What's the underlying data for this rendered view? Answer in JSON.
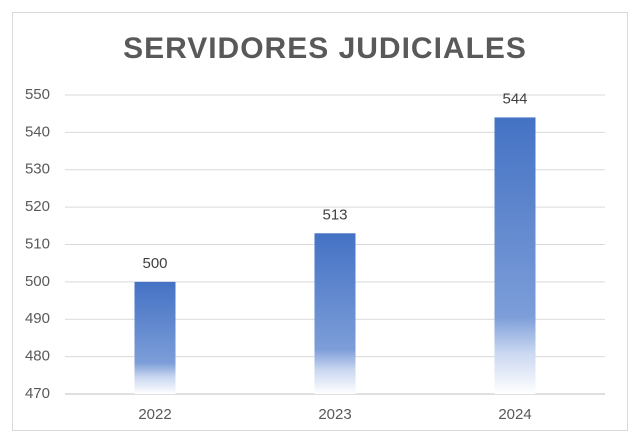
{
  "chart_data": {
    "type": "bar",
    "title": "SERVIDORES JUDICIALES",
    "categories": [
      "2022",
      "2023",
      "2024"
    ],
    "values": [
      500,
      513,
      544
    ],
    "color": "#4472c4",
    "ylim": [
      470,
      550
    ],
    "yticks": [
      470,
      480,
      490,
      500,
      510,
      520,
      530,
      540,
      550
    ],
    "grid": true
  }
}
